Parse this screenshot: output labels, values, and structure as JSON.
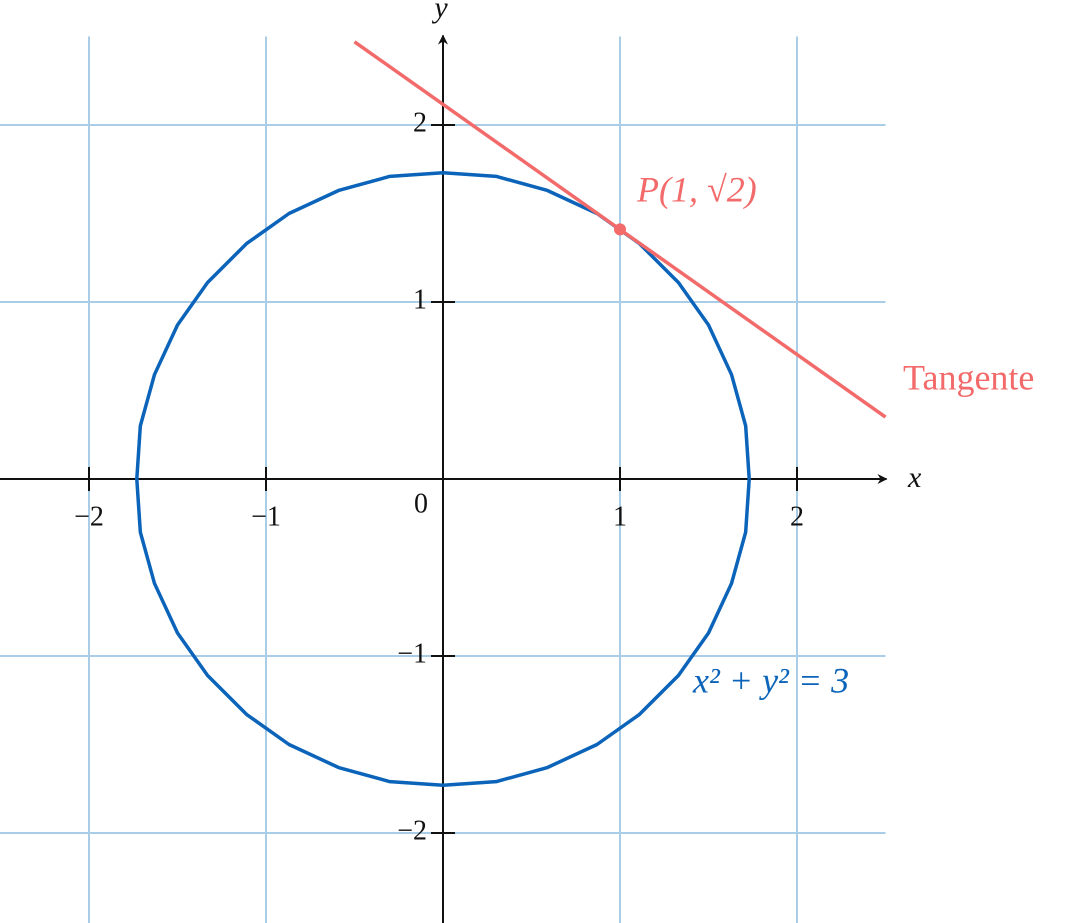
{
  "chart_data": {
    "type": "line",
    "xlim": [
      -2.5,
      2.5
    ],
    "ylim": [
      -2.5,
      2.5
    ],
    "xticks": [
      {
        "value": -2,
        "label": "−2"
      },
      {
        "value": -1,
        "label": "−1"
      },
      1,
      2
    ],
    "yticks": [
      {
        "value": -2,
        "label": "−2"
      },
      {
        "value": -1,
        "label": "−1"
      },
      1,
      2
    ],
    "origin_label": "0",
    "x_label": "x",
    "y_label": "y",
    "grid": true,
    "grid_color": "#a9cde6",
    "series": [
      {
        "name": "x² + y² = 3",
        "color": "#0b64b9",
        "x": [
          1.73,
          1.71,
          1.63,
          1.5,
          1.33,
          1.11,
          0.87,
          0.59,
          0.3,
          0,
          -0.3,
          -0.59,
          -0.87,
          -1.11,
          -1.33,
          -1.5,
          -1.63,
          -1.71,
          -1.73,
          -1.71,
          -1.63,
          -1.5,
          -1.33,
          -1.11,
          -0.87,
          -0.59,
          -0.3,
          0,
          0.3,
          0.59,
          0.87,
          1.11,
          1.33,
          1.5,
          1.63,
          1.71,
          1.73
        ],
        "values": [
          0,
          0.3,
          0.59,
          0.87,
          1.11,
          1.33,
          1.5,
          1.63,
          1.71,
          1.73,
          1.71,
          1.63,
          1.5,
          1.33,
          1.11,
          0.87,
          0.59,
          0.3,
          0,
          -0.3,
          -0.59,
          -0.87,
          -1.11,
          -1.33,
          -1.5,
          -1.63,
          -1.71,
          -1.73,
          -1.71,
          -1.63,
          -1.5,
          -1.33,
          -1.11,
          -0.87,
          -0.59,
          -0.3,
          0
        ]
      },
      {
        "name": "Tangente",
        "color": "#f26a6a",
        "x": [
          -0.5,
          2.5
        ],
        "values": [
          2.47,
          0.35
        ]
      },
      {
        "name": "P(1, √2)",
        "color": "#f26a6a",
        "x": [
          1
        ],
        "values": [
          1.41
        ]
      }
    ]
  }
}
